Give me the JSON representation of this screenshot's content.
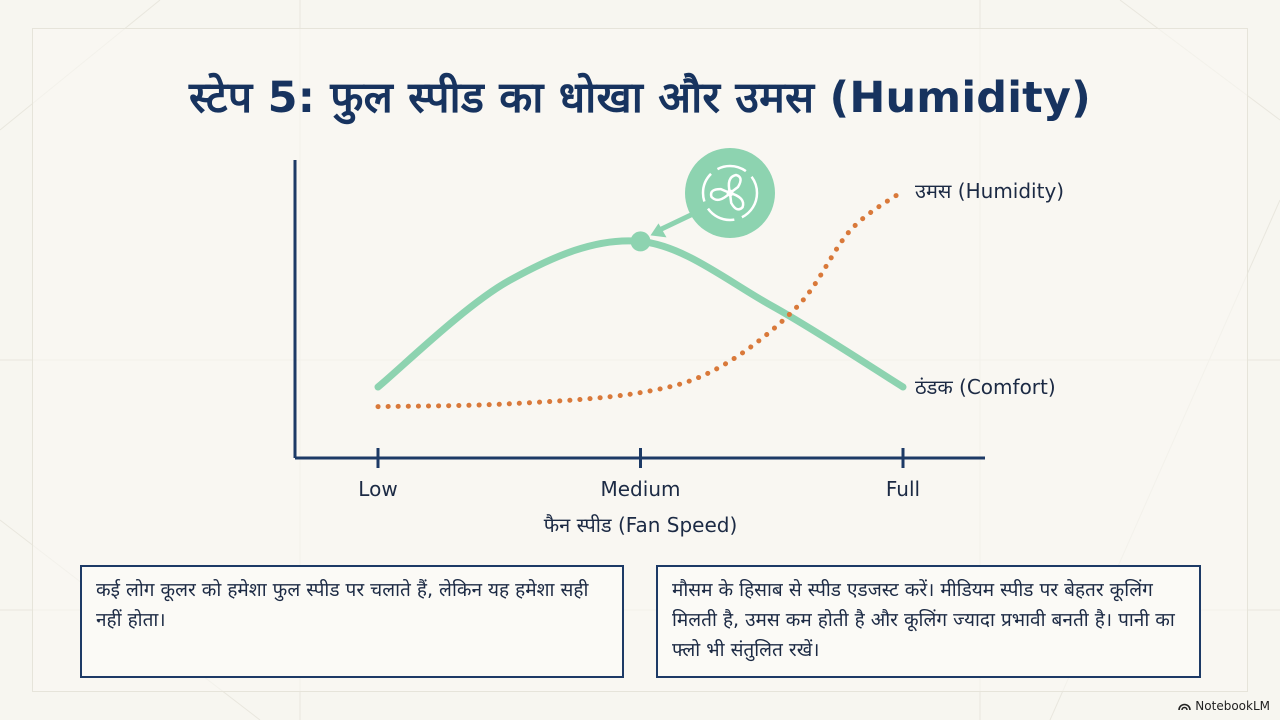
{
  "slide": {
    "title": "स्टेप 5: फुल स्पीड का धोखा और उमस (Humidity)",
    "note_left": "कई लोग कूलर को हमेशा फुल स्पीड पर चलाते हैं, लेकिन यह हमेशा सही नहीं होता।",
    "note_right": "मौसम के हिसाब से स्पीड एडजस्ट करें। मीडियम स्पीड पर बेहतर कूलिंग मिलती है, उमस कम होती है और कूलिंग ज्यादा प्रभावी बनती है। पानी का फ्लो भी संतुलित रखें।",
    "brand": "NotebookLM"
  },
  "colors": {
    "comfort": "#8dd3b0",
    "humidity": "#d9793a",
    "axis": "#1d3a66",
    "title": "#17335f"
  },
  "chart_data": {
    "type": "line",
    "title": "",
    "xlabel": "फैन स्पीड (Fan Speed)",
    "ylabel": "",
    "x_categories": [
      "Low",
      "Medium",
      "Full"
    ],
    "xlim": [
      0,
      2
    ],
    "ylim": [
      0,
      10
    ],
    "grid": false,
    "series": [
      {
        "name": "ठंडक (Comfort)",
        "style": "solid",
        "color": "#8dd3b0",
        "points": [
          [
            0,
            2.0
          ],
          [
            0.5,
            5.8
          ],
          [
            1.0,
            7.2
          ],
          [
            1.5,
            4.9
          ],
          [
            2.0,
            2.0
          ]
        ],
        "peak_marker": {
          "x": 1.0,
          "y": 7.2,
          "icon": "fan-icon"
        }
      },
      {
        "name": "उमस (Humidity)",
        "style": "dotted",
        "color": "#d9793a",
        "points": [
          [
            0,
            1.3
          ],
          [
            0.5,
            1.4
          ],
          [
            1.0,
            1.8
          ],
          [
            1.3,
            2.7
          ],
          [
            1.6,
            4.9
          ],
          [
            1.8,
            7.6
          ],
          [
            2.0,
            9.0
          ]
        ]
      }
    ]
  }
}
